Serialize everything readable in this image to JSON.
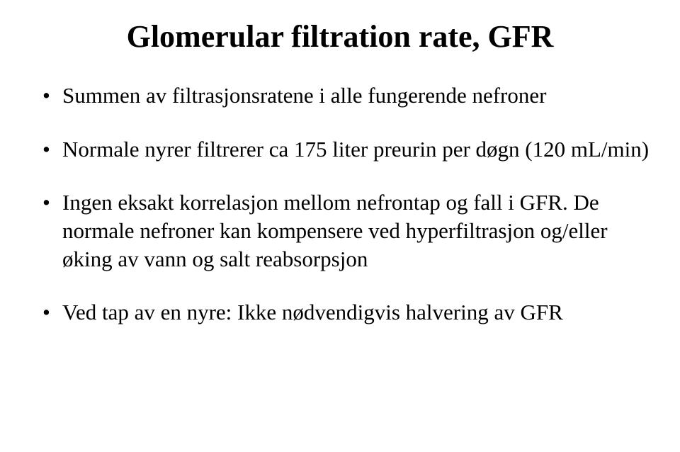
{
  "slide": {
    "title": "Glomerular filtration rate, GFR",
    "title_fontsize": 44,
    "title_fontweight": "bold",
    "bullets": [
      "Summen av filtrasjonsratene i alle fungerende nefroner",
      "Normale nyrer filtrerer ca 175 liter preurin per døgn (120 mL/min)",
      "Ingen eksakt korrelasjon mellom nefrontap og fall i GFR. De normale nefroner kan kompensere ved hyperfiltrasjon og/eller øking av vann og salt reabsorpsjon",
      "Ved tap av en nyre: Ikke nødvendigvis halvering av GFR"
    ],
    "body_fontsize": 31,
    "font_family": "Times New Roman",
    "background_color": "#ffffff",
    "text_color": "#000000"
  }
}
